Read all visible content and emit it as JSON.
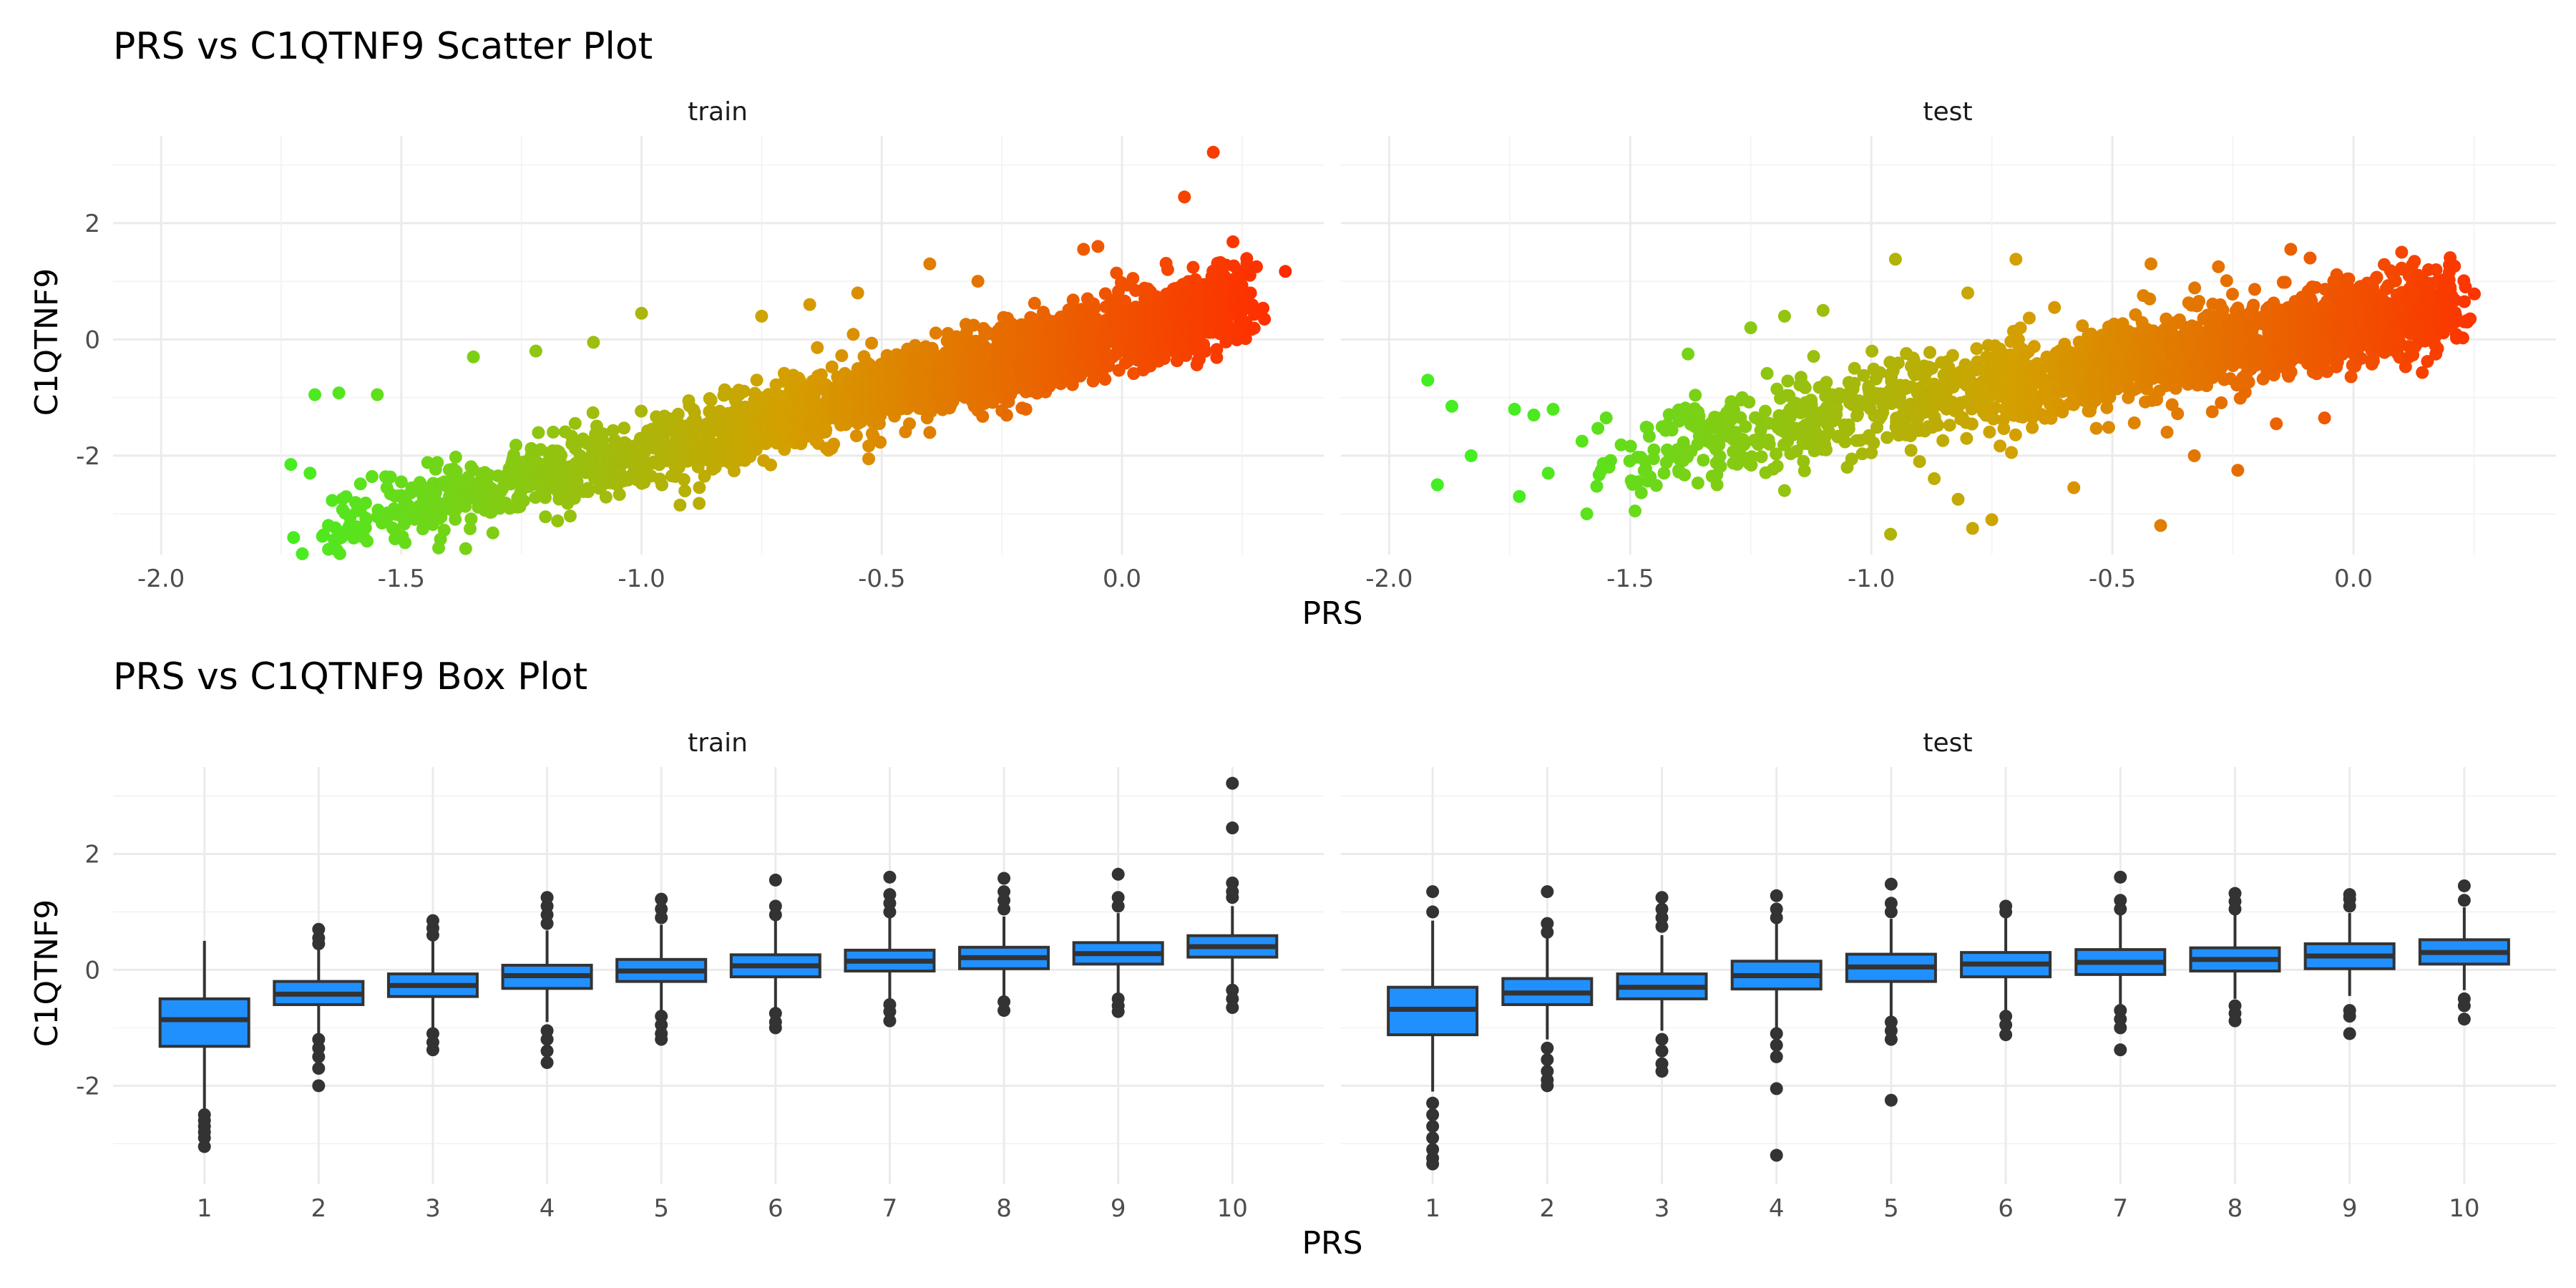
{
  "chart_data": [
    {
      "type": "scatter",
      "title": "PRS vs C1QTNF9 Scatter Plot",
      "xlabel": "PRS",
      "ylabel": "C1QTNF9",
      "xlim": [
        -2.1,
        0.42
      ],
      "ylim": [
        -3.7,
        3.5
      ],
      "x_ticks": [
        "-2.0",
        "-1.5",
        "-1.0",
        "-0.5",
        "0.0"
      ],
      "y_ticks": [
        "2",
        "0",
        "-2"
      ],
      "color_gradient": {
        "low": "#44ee22",
        "mid": "#d4a000",
        "high": "#ff2a00"
      },
      "grid": true,
      "legend": "none",
      "panels": [
        {
          "name": "train",
          "trend": {
            "slope": 2.05,
            "intercept": 0.12,
            "x_range": [
              -1.75,
              0.25
            ]
          },
          "points": [
            {
              "x": 0.19,
              "y": 3.22
            },
            {
              "x": 0.13,
              "y": 2.45
            },
            {
              "x": 0.34,
              "y": 1.17
            },
            {
              "x": 0.26,
              "y": 1.3
            },
            {
              "x": 0.28,
              "y": 1.25
            },
            {
              "x": -0.05,
              "y": 1.6
            },
            {
              "x": -0.08,
              "y": 1.55
            },
            {
              "x": -0.4,
              "y": 1.3
            },
            {
              "x": -1.73,
              "y": -2.15
            },
            {
              "x": -1.69,
              "y": -2.3
            },
            {
              "x": -1.68,
              "y": -0.95
            },
            {
              "x": -1.63,
              "y": -0.92
            },
            {
              "x": -1.55,
              "y": -0.95
            },
            {
              "x": -1.53,
              "y": -2.55
            },
            {
              "x": -1.55,
              "y": -3.05
            },
            {
              "x": -1.37,
              "y": -2.85
            },
            {
              "x": -1.4,
              "y": -2.7
            },
            {
              "x": -1.2,
              "y": -3.05
            },
            {
              "x": -0.92,
              "y": -2.85
            },
            {
              "x": -0.88,
              "y": -2.82
            },
            {
              "x": -1.05,
              "y": -2.5
            },
            {
              "x": -0.98,
              "y": -2.35
            },
            {
              "x": -0.85,
              "y": -2.2
            },
            {
              "x": -0.4,
              "y": -1.6
            },
            {
              "x": -0.6,
              "y": -1.8
            },
            {
              "x": -0.8,
              "y": -1.85
            },
            {
              "x": -1.1,
              "y": -2.25
            },
            {
              "x": -1.25,
              "y": -2.6
            },
            {
              "x": -1.5,
              "y": -2.45
            },
            {
              "x": -0.2,
              "y": -1.2
            },
            {
              "x": -0.75,
              "y": 0.4
            },
            {
              "x": -1.0,
              "y": 0.45
            },
            {
              "x": -1.22,
              "y": -0.2
            },
            {
              "x": -1.1,
              "y": -0.05
            },
            {
              "x": -0.55,
              "y": 0.8
            },
            {
              "x": -0.65,
              "y": 0.6
            },
            {
              "x": -0.3,
              "y": 1.0
            },
            {
              "x": -1.35,
              "y": -0.3
            }
          ]
        },
        {
          "name": "test",
          "trend": {
            "slope": 1.45,
            "intercept": 0.28,
            "x_range": [
              -1.6,
              0.2
            ]
          },
          "points": [
            {
              "x": -1.92,
              "y": -0.7
            },
            {
              "x": -1.9,
              "y": -2.5
            },
            {
              "x": -1.87,
              "y": -1.15
            },
            {
              "x": -1.83,
              "y": -2.0
            },
            {
              "x": -1.74,
              "y": -1.2
            },
            {
              "x": -1.73,
              "y": -2.7
            },
            {
              "x": -1.7,
              "y": -1.3
            },
            {
              "x": -1.66,
              "y": -1.2
            },
            {
              "x": -1.67,
              "y": -2.3
            },
            {
              "x": -1.6,
              "y": -1.75
            },
            {
              "x": -1.59,
              "y": -3.0
            },
            {
              "x": -1.56,
              "y": -2.25
            },
            {
              "x": -1.49,
              "y": -2.95
            },
            {
              "x": -0.95,
              "y": 1.38
            },
            {
              "x": -0.7,
              "y": 1.38
            },
            {
              "x": -0.8,
              "y": 0.8
            },
            {
              "x": -0.42,
              "y": 1.3
            },
            {
              "x": -0.13,
              "y": 1.55
            },
            {
              "x": -0.28,
              "y": 1.25
            },
            {
              "x": -0.09,
              "y": 1.4
            },
            {
              "x": 0.1,
              "y": 1.5
            },
            {
              "x": 0.18,
              "y": 0.6
            },
            {
              "x": 0.23,
              "y": 0.65
            },
            {
              "x": -0.96,
              "y": -3.35
            },
            {
              "x": -0.79,
              "y": -3.25
            },
            {
              "x": -0.75,
              "y": -3.1
            },
            {
              "x": -0.4,
              "y": -3.2
            },
            {
              "x": -0.82,
              "y": -2.75
            },
            {
              "x": -0.58,
              "y": -2.55
            },
            {
              "x": -0.24,
              "y": -2.25
            },
            {
              "x": -0.33,
              "y": -2.0
            },
            {
              "x": -0.06,
              "y": -1.35
            },
            {
              "x": -0.16,
              "y": -1.45
            },
            {
              "x": -1.18,
              "y": -2.6
            },
            {
              "x": -1.05,
              "y": -2.2
            },
            {
              "x": -0.9,
              "y": -2.1
            },
            {
              "x": -1.32,
              "y": -2.5
            },
            {
              "x": -1.43,
              "y": -2.3
            },
            {
              "x": -1.1,
              "y": 0.5
            },
            {
              "x": -1.18,
              "y": 0.4
            },
            {
              "x": -1.25,
              "y": 0.2
            },
            {
              "x": -0.62,
              "y": 0.55
            },
            {
              "x": -1.38,
              "y": -0.25
            },
            {
              "x": -1.0,
              "y": -1.95
            }
          ]
        }
      ]
    },
    {
      "type": "box",
      "title": "PRS vs C1QTNF9 Box Plot",
      "xlabel": "PRS",
      "ylabel": "C1QTNF9",
      "ylim": [
        -3.7,
        3.5
      ],
      "y_ticks": [
        "2",
        "0",
        "-2"
      ],
      "categories": [
        "1",
        "2",
        "3",
        "4",
        "5",
        "6",
        "7",
        "8",
        "9",
        "10"
      ],
      "box_color": "#2190ff",
      "grid": true,
      "panels": [
        {
          "name": "train",
          "boxes": [
            {
              "q1": -1.32,
              "median": -0.86,
              "q3": -0.5,
              "low": -2.4,
              "high": 0.5,
              "outliers": [
                -2.5,
                -2.6,
                -2.7,
                -2.8,
                -2.9,
                -3.05
              ]
            },
            {
              "q1": -0.6,
              "median": -0.42,
              "q3": -0.2,
              "low": -1.15,
              "high": 0.38,
              "outliers": [
                0.45,
                0.55,
                0.7,
                -1.2,
                -1.35,
                -1.5,
                -1.7,
                -2.0
              ]
            },
            {
              "q1": -0.46,
              "median": -0.27,
              "q3": -0.07,
              "low": -1.0,
              "high": 0.5,
              "outliers": [
                0.6,
                0.72,
                0.85,
                -1.1,
                -1.25,
                -1.38
              ]
            },
            {
              "q1": -0.32,
              "median": -0.1,
              "q3": 0.08,
              "low": -0.9,
              "high": 0.68,
              "outliers": [
                0.8,
                0.95,
                1.1,
                1.25,
                -1.05,
                -1.2,
                -1.4,
                -1.6
              ]
            },
            {
              "q1": -0.2,
              "median": -0.02,
              "q3": 0.18,
              "low": -0.7,
              "high": 0.78,
              "outliers": [
                0.9,
                1.05,
                1.22,
                -0.8,
                -0.95,
                -1.1,
                -1.2
              ]
            },
            {
              "q1": -0.12,
              "median": 0.07,
              "q3": 0.26,
              "low": -0.65,
              "high": 0.85,
              "outliers": [
                0.95,
                1.1,
                1.55,
                -0.75,
                -0.9,
                -1.0
              ]
            },
            {
              "q1": -0.02,
              "median": 0.15,
              "q3": 0.34,
              "low": -0.5,
              "high": 0.9,
              "outliers": [
                1.0,
                1.15,
                1.3,
                1.6,
                -0.6,
                -0.72,
                -0.88
              ]
            },
            {
              "q1": 0.02,
              "median": 0.21,
              "q3": 0.39,
              "low": -0.45,
              "high": 0.92,
              "outliers": [
                1.05,
                1.2,
                1.35,
                1.58,
                -0.55,
                -0.7
              ]
            },
            {
              "q1": 0.1,
              "median": 0.28,
              "q3": 0.47,
              "low": -0.4,
              "high": 0.98,
              "outliers": [
                1.1,
                1.25,
                1.65,
                -0.5,
                -0.62,
                -0.72
              ]
            },
            {
              "q1": 0.22,
              "median": 0.4,
              "q3": 0.59,
              "low": -0.25,
              "high": 1.1,
              "outliers": [
                1.25,
                1.35,
                1.5,
                2.45,
                3.22,
                -0.35,
                -0.5,
                -0.65
              ]
            }
          ]
        },
        {
          "name": "test",
          "boxes": [
            {
              "q1": -1.12,
              "median": -0.68,
              "q3": -0.3,
              "low": -2.1,
              "high": 0.85,
              "outliers": [
                1.0,
                1.35,
                -2.3,
                -2.5,
                -2.7,
                -2.9,
                -3.1,
                -3.25,
                -3.35
              ]
            },
            {
              "q1": -0.6,
              "median": -0.4,
              "q3": -0.15,
              "low": -1.2,
              "high": 0.55,
              "outliers": [
                0.65,
                0.8,
                1.35,
                -1.35,
                -1.55,
                -1.75,
                -1.9,
                -2.0
              ]
            },
            {
              "q1": -0.5,
              "median": -0.3,
              "q3": -0.07,
              "low": -1.05,
              "high": 0.6,
              "outliers": [
                0.75,
                0.9,
                1.05,
                1.25,
                -1.2,
                -1.4,
                -1.62,
                -1.75
              ]
            },
            {
              "q1": -0.33,
              "median": -0.1,
              "q3": 0.15,
              "low": -1.0,
              "high": 0.8,
              "outliers": [
                0.9,
                1.05,
                1.28,
                -1.1,
                -1.3,
                -1.5,
                -2.05,
                -3.2
              ]
            },
            {
              "q1": -0.2,
              "median": 0.05,
              "q3": 0.27,
              "low": -0.8,
              "high": 0.88,
              "outliers": [
                1.0,
                1.15,
                1.48,
                -0.9,
                -1.05,
                -1.2,
                -2.25
              ]
            },
            {
              "q1": -0.12,
              "median": 0.1,
              "q3": 0.3,
              "low": -0.7,
              "high": 0.9,
              "outliers": [
                1.0,
                1.1,
                -0.8,
                -0.95,
                -1.12
              ]
            },
            {
              "q1": -0.08,
              "median": 0.13,
              "q3": 0.35,
              "low": -0.6,
              "high": 0.95,
              "outliers": [
                1.05,
                1.2,
                1.6,
                -0.7,
                -0.85,
                -1.0,
                -1.38
              ]
            },
            {
              "q1": -0.02,
              "median": 0.18,
              "q3": 0.38,
              "low": -0.5,
              "high": 0.95,
              "outliers": [
                1.05,
                1.18,
                1.32,
                -0.62,
                -0.75,
                -0.88
              ]
            },
            {
              "q1": 0.02,
              "median": 0.24,
              "q3": 0.45,
              "low": -0.45,
              "high": 0.98,
              "outliers": [
                1.1,
                1.22,
                1.3,
                -0.7,
                -0.8,
                -1.1
              ]
            },
            {
              "q1": 0.1,
              "median": 0.3,
              "q3": 0.52,
              "low": -0.35,
              "high": 1.08,
              "outliers": [
                1.2,
                1.45,
                -0.5,
                -0.62,
                -0.85
              ]
            }
          ]
        }
      ]
    }
  ]
}
